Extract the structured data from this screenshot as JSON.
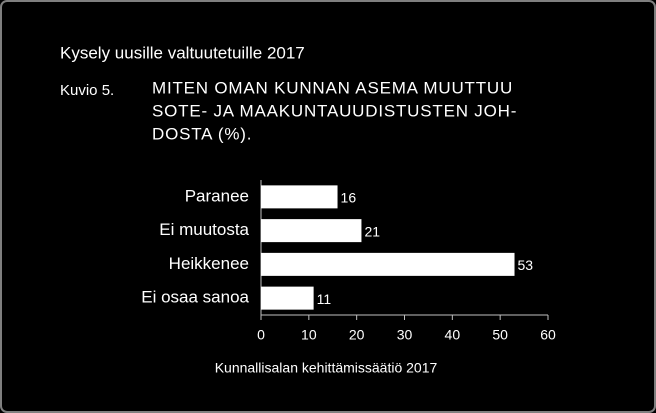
{
  "chart_data": {
    "type": "hbar",
    "subtitle": "Kysely uusille valtuutetuille 2017",
    "figure_label": "Kuvio 5.",
    "title": [
      "MITEN OMAN KUNNAN ASEMA MUUTTUU",
      "SOTE- JA MAAKUNTAUUDISTUSTEN JOH-",
      "DOSTA (%)."
    ],
    "categories": [
      "Paranee",
      "Ei muutosta",
      "Heikkenee",
      "Ei osaa sanoa"
    ],
    "values": [
      16,
      21,
      53,
      11
    ],
    "color": "#ffffff",
    "xlim": [
      0,
      60
    ],
    "xticks": [
      0,
      10,
      20,
      30,
      40,
      50,
      60
    ],
    "source": "Kunnallisalan kehittämissäätiö 2017"
  }
}
